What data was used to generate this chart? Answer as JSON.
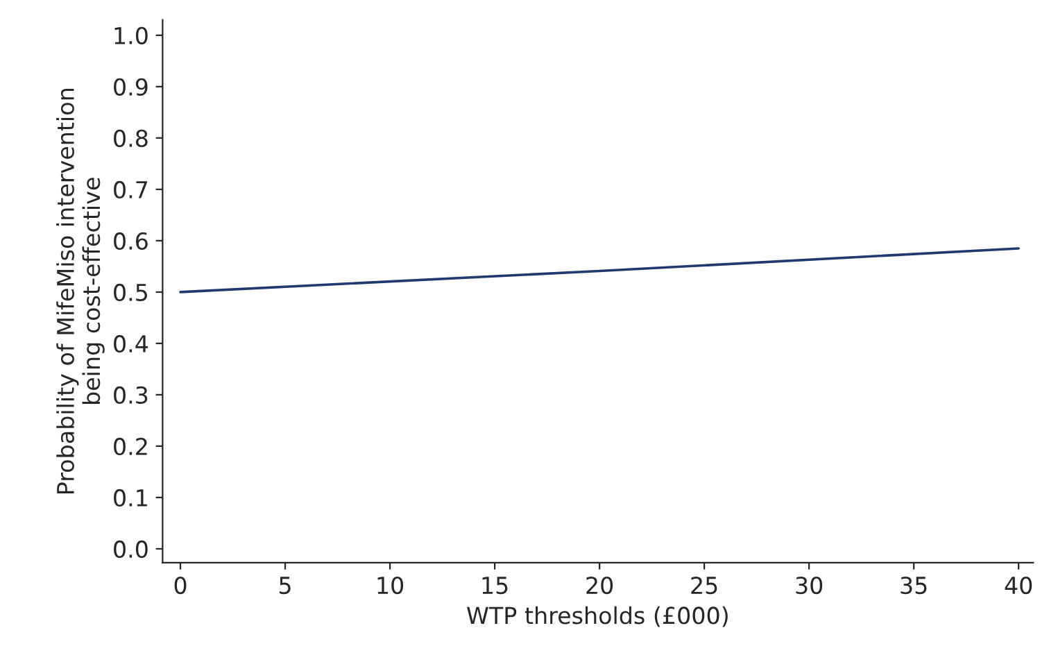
{
  "chart_data": {
    "type": "line",
    "xlabel": "WTP thresholds (£000)",
    "ylabel": "Probability of MifeMiso intervention\nbeing cost-effective",
    "x": [
      0,
      20,
      40
    ],
    "series": [
      {
        "color": "#1f3a6e",
        "values": [
          0.5,
          0.541,
          0.585
        ]
      }
    ],
    "xlim": [
      -0.85,
      40.7
    ],
    "xticks": [
      0,
      5,
      10,
      15,
      20,
      25,
      30,
      35,
      40
    ],
    "ylim": [
      -0.027,
      1.03
    ],
    "yticks": [
      {
        "value": 0,
        "label": "0.0"
      },
      0.1,
      0.2,
      0.3,
      0.4,
      0.5,
      0.6,
      0.7,
      0.8,
      0.9,
      {
        "value": 1,
        "label": "1.0"
      }
    ],
    "grid": false,
    "legend": false,
    "marker": "none",
    "line_style": "solid"
  }
}
